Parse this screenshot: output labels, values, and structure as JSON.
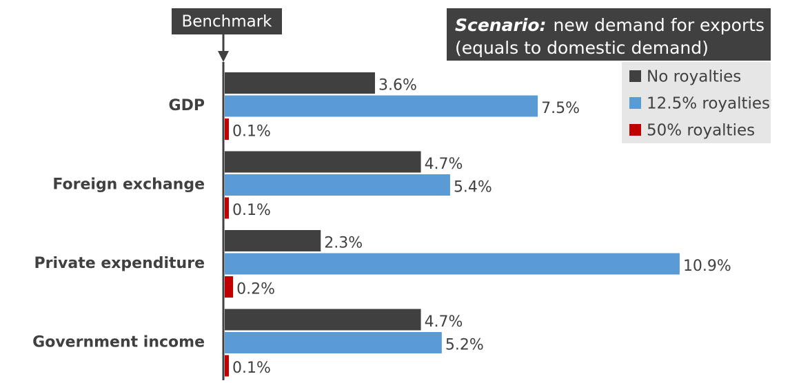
{
  "chart_data": {
    "type": "hbar",
    "annotations": {
      "benchmark": "Benchmark",
      "scenario_label": "Scenario:",
      "scenario_lines": [
        "new demand for exports",
        "(equals to domestic demand)"
      ]
    },
    "categories": [
      "GDP",
      "Foreign exchange",
      "Private expenditure",
      "Government income"
    ],
    "series": [
      {
        "name": "No royalties",
        "color": "#404040",
        "values": [
          3.6,
          4.7,
          2.3,
          4.7
        ],
        "value_labels": [
          "3.6%",
          "4.7%",
          "2.3%",
          "4.7%"
        ]
      },
      {
        "name": "12.5% royalties",
        "color": "#5b9bd5",
        "values": [
          7.5,
          5.4,
          10.9,
          5.2
        ],
        "value_labels": [
          "7.5%",
          "5.4%",
          "10.9%",
          "5.2%"
        ]
      },
      {
        "name": "50% royalties",
        "color": "#c00000",
        "values": [
          0.1,
          0.1,
          0.2,
          0.1
        ],
        "value_labels": [
          "0.1%",
          "0.1%",
          "0.2%",
          "0.1%"
        ]
      }
    ],
    "xlim": [
      0,
      11
    ],
    "legend": "upper right"
  }
}
